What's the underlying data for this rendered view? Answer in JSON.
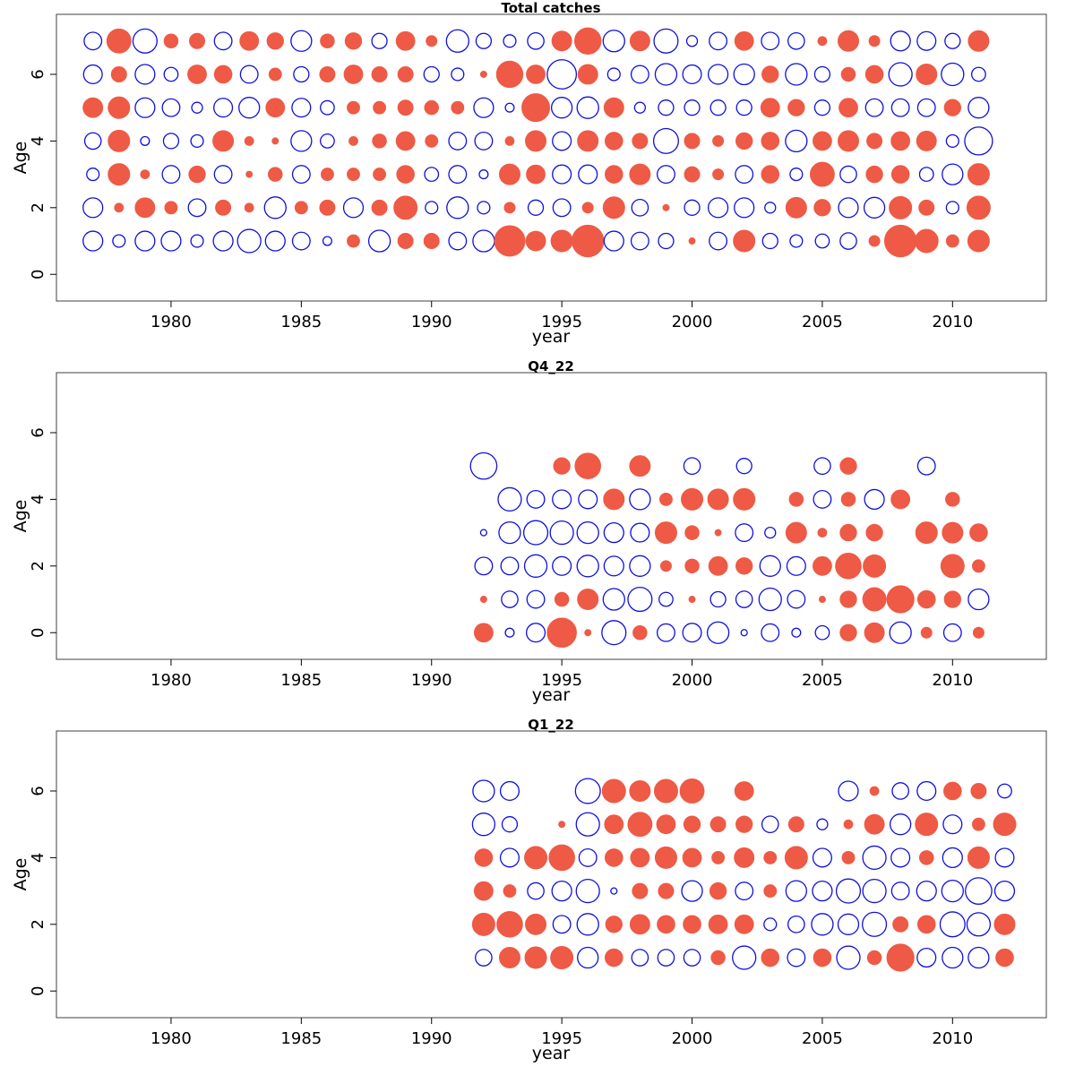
{
  "colors": {
    "positive": "#ee5a45",
    "negative": "#1010dd"
  },
  "chart_data": [
    {
      "type": "scatter",
      "subtype": "bubble-residuals",
      "title": "Total catches",
      "xlabel": "year",
      "ylabel": "Age",
      "xlim": [
        1975.6,
        2013.6
      ],
      "ylim": [
        -0.8,
        7.8
      ],
      "xticks": [
        1980,
        1985,
        1990,
        1995,
        2000,
        2005,
        2010
      ],
      "yticks": [
        0,
        2,
        4,
        6
      ],
      "years": [
        1977,
        1978,
        1979,
        1980,
        1981,
        1982,
        1983,
        1984,
        1985,
        1986,
        1987,
        1988,
        1989,
        1990,
        1991,
        1992,
        1993,
        1994,
        1995,
        1996,
        1997,
        1998,
        1999,
        2000,
        2001,
        2002,
        2003,
        2004,
        2005,
        2006,
        2007,
        2008,
        2009,
        2010,
        2011
      ],
      "ages": [
        1,
        2,
        3,
        4,
        5,
        6,
        7
      ],
      "residuals": [
        [
          -0.5,
          -0.2,
          -0.5,
          -0.5,
          -0.2,
          -0.5,
          -0.7,
          -0.5,
          -0.4,
          -0.1,
          0.2,
          -0.6,
          0.3,
          0.3,
          -0.4,
          -0.6,
          1.2,
          0.5,
          0.6,
          1.3,
          -0.5,
          -0.4,
          -0.3,
          0.05,
          -0.4,
          0.6,
          -0.3,
          -0.2,
          -0.25,
          -0.35,
          0.15,
          1.3,
          0.7,
          0.2,
          0.6
        ],
        [
          -0.5,
          0.1,
          0.5,
          0.2,
          -0.4,
          0.3,
          0.1,
          -0.6,
          0.2,
          0.3,
          -0.5,
          0.3,
          0.7,
          -0.2,
          -0.6,
          -0.2,
          0.15,
          -0.3,
          -0.4,
          0.15,
          0.6,
          -0.35,
          0.05,
          -0.3,
          -0.5,
          -0.5,
          -0.15,
          0.55,
          0.35,
          -0.5,
          -0.55,
          0.65,
          0.3,
          -0.2,
          0.7
        ],
        [
          -0.2,
          0.6,
          0.1,
          -0.4,
          0.35,
          -0.4,
          0.05,
          0.25,
          -0.4,
          0.2,
          0.2,
          0.2,
          0.4,
          -0.25,
          -0.4,
          -0.1,
          0.55,
          0.45,
          -0.45,
          -0.45,
          0.4,
          0.55,
          -0.4,
          0.3,
          0.15,
          -0.4,
          0.4,
          -0.2,
          0.75,
          -0.35,
          0.35,
          0.4,
          -0.25,
          -0.55,
          0.6
        ],
        [
          -0.35,
          0.6,
          -0.1,
          -0.3,
          -0.2,
          0.55,
          0.1,
          0.05,
          -0.55,
          -0.25,
          0.1,
          0.25,
          0.45,
          0.2,
          -0.4,
          -0.4,
          0.1,
          0.55,
          -0.45,
          0.55,
          0.4,
          0.3,
          -0.8,
          0.3,
          0.15,
          0.35,
          0.4,
          -0.6,
          0.45,
          0.55,
          0.3,
          0.45,
          0.5,
          -0.2,
          -1.0
        ],
        [
          0.5,
          0.6,
          -0.5,
          -0.4,
          -0.15,
          -0.45,
          -0.55,
          0.45,
          -0.45,
          -0.25,
          0.2,
          0.2,
          0.3,
          0.25,
          0.2,
          -0.5,
          -0.1,
          1.0,
          -0.55,
          -0.6,
          0.5,
          -0.15,
          -0.3,
          -0.3,
          -0.3,
          -0.3,
          0.45,
          0.35,
          -0.3,
          0.45,
          -0.4,
          -0.4,
          -0.4,
          0.35,
          -0.55
        ],
        [
          -0.45,
          0.3,
          -0.5,
          -0.25,
          0.45,
          0.4,
          -0.4,
          0.2,
          -0.3,
          0.3,
          0.45,
          0.3,
          0.3,
          -0.3,
          -0.2,
          0.05,
          0.9,
          0.45,
          -1.1,
          0.5,
          -0.2,
          -0.4,
          -0.6,
          -0.45,
          -0.5,
          -0.55,
          0.35,
          -0.6,
          -0.3,
          0.25,
          0.4,
          -0.7,
          0.55,
          -0.65,
          -0.25
        ],
        [
          -0.4,
          0.75,
          -0.75,
          0.25,
          0.3,
          -0.4,
          0.45,
          0.35,
          -0.55,
          0.25,
          0.35,
          -0.3,
          0.45,
          0.15,
          -0.65,
          -0.3,
          -0.2,
          -0.35,
          0.5,
          0.9,
          -0.6,
          0.5,
          -0.75,
          -0.15,
          -0.4,
          0.45,
          -0.4,
          -0.35,
          0.1,
          0.55,
          0.15,
          -0.5,
          -0.45,
          -0.3,
          0.55
        ]
      ]
    },
    {
      "type": "scatter",
      "subtype": "bubble-residuals",
      "title": "Q4_22",
      "xlabel": "year",
      "ylabel": "Age",
      "xlim": [
        1975.6,
        2013.6
      ],
      "ylim": [
        -0.8,
        7.8
      ],
      "xticks": [
        1980,
        1985,
        1990,
        1995,
        2000,
        2005,
        2010
      ],
      "yticks": [
        0,
        2,
        4,
        6
      ],
      "years": [
        1992,
        1993,
        1994,
        1995,
        1996,
        1997,
        1998,
        1999,
        2000,
        2001,
        2002,
        2003,
        2004,
        2005,
        2006,
        2007,
        2008,
        2009,
        2010,
        2011
      ],
      "ages": [
        0,
        1,
        2,
        3,
        4,
        5
      ],
      "residuals": [
        [
          0.45,
          -0.1,
          -0.45,
          1.1,
          0.05,
          -0.75,
          0.25,
          -0.4,
          -0.45,
          -0.6,
          -0.05,
          -0.4,
          -0.1,
          -0.25,
          0.35,
          0.5,
          -0.6,
          0.15,
          -0.4,
          0.15
        ],
        [
          0.05,
          -0.35,
          -0.4,
          0.25,
          0.55,
          -0.6,
          -0.75,
          -0.25,
          0.05,
          -0.3,
          -0.35,
          -0.65,
          -0.4,
          0.05,
          0.35,
          0.7,
          0.95,
          0.4,
          0.35,
          -0.55
        ],
        [
          -0.4,
          -0.4,
          -0.65,
          -0.45,
          -0.6,
          -0.5,
          -0.55,
          0.15,
          0.25,
          0.45,
          0.35,
          -0.55,
          -0.45,
          0.45,
          0.85,
          0.65,
          null,
          null,
          0.7,
          0.2
        ],
        [
          -0.05,
          -0.6,
          -0.75,
          -0.7,
          -0.6,
          -0.5,
          -0.45,
          0.6,
          0.25,
          0.05,
          -0.4,
          -0.15,
          0.55,
          0.1,
          0.35,
          0.35,
          null,
          0.6,
          0.55,
          0.4
        ],
        [
          null,
          -0.7,
          -0.4,
          -0.45,
          -0.45,
          0.55,
          -0.55,
          0.2,
          0.6,
          0.55,
          0.6,
          null,
          0.25,
          -0.4,
          0.25,
          -0.5,
          0.45,
          null,
          0.25,
          null
        ],
        [
          -0.9,
          null,
          null,
          0.35,
          0.85,
          null,
          0.55,
          null,
          -0.35,
          null,
          -0.3,
          null,
          null,
          -0.35,
          0.35,
          null,
          null,
          -0.4,
          null,
          null
        ]
      ]
    },
    {
      "type": "scatter",
      "subtype": "bubble-residuals",
      "title": "Q1_22",
      "xlabel": "year",
      "ylabel": "Age",
      "xlim": [
        1975.6,
        2013.6
      ],
      "ylim": [
        -0.8,
        7.8
      ],
      "xticks": [
        1980,
        1985,
        1990,
        1995,
        2000,
        2005,
        2010
      ],
      "yticks": [
        0,
        2,
        4,
        6
      ],
      "years": [
        1992,
        1993,
        1994,
        1995,
        1996,
        1997,
        1998,
        1999,
        2000,
        2001,
        2002,
        2003,
        2004,
        2005,
        2006,
        2007,
        2008,
        2009,
        2010,
        2011,
        2012
      ],
      "ages": [
        1,
        2,
        3,
        4,
        5,
        6
      ],
      "residuals": [
        [
          -0.35,
          0.55,
          0.6,
          0.65,
          -0.55,
          0.4,
          -0.35,
          -0.35,
          -0.35,
          0.25,
          -0.7,
          0.4,
          -0.4,
          0.4,
          -0.7,
          0.25,
          0.95,
          -0.45,
          -0.55,
          -0.55,
          0.4
        ],
        [
          0.65,
          0.85,
          0.55,
          -0.4,
          -0.6,
          0.35,
          0.5,
          0.4,
          0.4,
          0.45,
          0.45,
          -0.2,
          -0.35,
          -0.6,
          -0.55,
          -0.75,
          0.3,
          0.4,
          -0.8,
          -0.7,
          0.55
        ],
        [
          0.45,
          0.2,
          -0.35,
          -0.5,
          -0.7,
          -0.05,
          0.3,
          0.3,
          -0.55,
          0.35,
          -0.4,
          0.2,
          -0.55,
          -0.5,
          -0.75,
          -0.7,
          -0.4,
          -0.5,
          -0.6,
          -0.9,
          -0.5
        ],
        [
          0.4,
          -0.45,
          0.65,
          0.85,
          -0.4,
          0.4,
          0.45,
          0.6,
          0.45,
          0.2,
          0.5,
          0.2,
          0.65,
          -0.45,
          0.2,
          -0.7,
          -0.45,
          0.25,
          -0.5,
          0.6,
          -0.45
        ],
        [
          -0.65,
          -0.3,
          null,
          0.05,
          -0.7,
          0.45,
          0.75,
          0.45,
          0.35,
          0.3,
          0.35,
          -0.35,
          0.3,
          -0.15,
          0.1,
          0.5,
          -0.55,
          0.65,
          -0.45,
          0.2,
          0.65
        ],
        [
          -0.6,
          -0.45,
          null,
          null,
          -0.8,
          0.7,
          0.55,
          0.7,
          0.75,
          null,
          0.45,
          null,
          null,
          null,
          -0.5,
          0.1,
          -0.35,
          -0.45,
          0.4,
          0.3,
          -0.25
        ]
      ]
    }
  ]
}
